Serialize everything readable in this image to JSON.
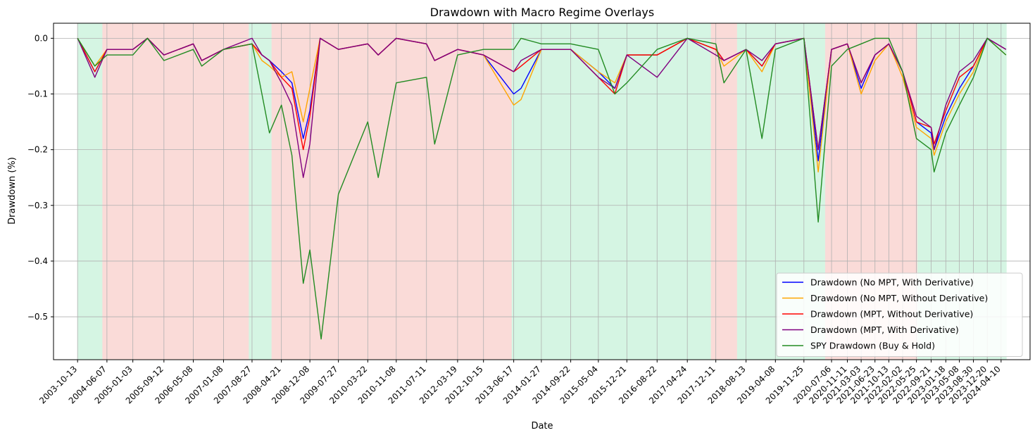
{
  "chart_data": {
    "type": "line",
    "title": "Drawdown with Macro Regime Overlays",
    "xlabel": "Date",
    "ylabel": "Drawdown (%)",
    "grid": true,
    "legend_position": "bottom-right",
    "xlim": [
      "2003-04-01",
      "2024-12-01"
    ],
    "ylim": [
      -0.577,
      0.027
    ],
    "yticks": [
      0.0,
      -0.1,
      -0.2,
      -0.3,
      -0.4,
      -0.5
    ],
    "ytick_labels": [
      "0.0",
      "−0.1",
      "−0.2",
      "−0.3",
      "−0.4",
      "−0.5"
    ],
    "xticks": [
      "2003-10-13",
      "2004-06-07",
      "2005-01-03",
      "2005-09-12",
      "2006-05-08",
      "2007-01-08",
      "2007-08-27",
      "2008-04-21",
      "2008-12-08",
      "2009-07-27",
      "2010-03-22",
      "2010-11-08",
      "2011-07-11",
      "2012-03-19",
      "2012-10-15",
      "2013-06-17",
      "2014-01-27",
      "2014-09-22",
      "2015-05-04",
      "2015-12-21",
      "2016-08-22",
      "2017-04-24",
      "2017-12-11",
      "2018-08-13",
      "2019-04-08",
      "2019-11-25",
      "2020-07-06",
      "2020-11-11",
      "2021-03-03",
      "2021-06-23",
      "2021-10-13",
      "2022-02-02",
      "2022-05-25",
      "2022-09-21",
      "2023-01-18",
      "2023-05-08",
      "2023-08-30",
      "2023-12-20",
      "2024-04-10"
    ],
    "regimes": [
      {
        "start": "2003-10-13",
        "end": "2004-05-01",
        "regime": "green"
      },
      {
        "start": "2004-05-01",
        "end": "2007-08-01",
        "regime": "red"
      },
      {
        "start": "2007-08-01",
        "end": "2008-02-01",
        "regime": "green"
      },
      {
        "start": "2008-02-01",
        "end": "2013-06-01",
        "regime": "red"
      },
      {
        "start": "2013-06-01",
        "end": "2017-11-01",
        "regime": "green"
      },
      {
        "start": "2017-11-01",
        "end": "2018-06-01",
        "regime": "red"
      },
      {
        "start": "2018-06-01",
        "end": "2020-05-15",
        "regime": "green"
      },
      {
        "start": "2020-05-15",
        "end": "2022-06-01",
        "regime": "red"
      },
      {
        "start": "2022-06-01",
        "end": "2024-05-25",
        "regime": "green"
      }
    ],
    "regime_colors": {
      "green": "#2ecc71",
      "red": "#e74c3c"
    },
    "series": [
      {
        "name": "Drawdown (No MPT, With Derivative)",
        "color": "#0000ff",
        "x": [
          "2003-10-13",
          "2004-03-01",
          "2004-06-07",
          "2005-01-03",
          "2005-05-01",
          "2005-09-12",
          "2006-05-08",
          "2006-07-15",
          "2007-01-08",
          "2007-08-27",
          "2007-11-15",
          "2008-01-15",
          "2008-04-21",
          "2008-07-15",
          "2008-10-15",
          "2008-12-08",
          "2009-03-01",
          "2009-07-27",
          "2010-03-22",
          "2010-06-15",
          "2010-11-08",
          "2011-07-11",
          "2011-09-15",
          "2012-03-19",
          "2012-10-15",
          "2013-06-17",
          "2013-08-15",
          "2014-01-27",
          "2014-09-22",
          "2015-05-04",
          "2015-09-15",
          "2015-12-21",
          "2016-08-22",
          "2017-04-24",
          "2017-12-11",
          "2018-02-15",
          "2018-08-13",
          "2018-12-20",
          "2019-04-08",
          "2019-11-25",
          "2020-03-20",
          "2020-07-06",
          "2020-11-11",
          "2021-03-03",
          "2021-06-23",
          "2021-10-13",
          "2022-02-02",
          "2022-05-25",
          "2022-09-21",
          "2022-10-15",
          "2023-01-18",
          "2023-05-08",
          "2023-08-30",
          "2023-12-20",
          "2024-05-20"
        ],
        "y": [
          0.0,
          -0.06,
          -0.02,
          -0.02,
          0.0,
          -0.03,
          -0.01,
          -0.04,
          -0.02,
          -0.01,
          -0.03,
          -0.04,
          -0.06,
          -0.08,
          -0.18,
          -0.13,
          0.0,
          -0.02,
          -0.01,
          -0.03,
          0.0,
          -0.01,
          -0.04,
          -0.02,
          -0.03,
          -0.1,
          -0.09,
          -0.02,
          -0.02,
          -0.06,
          -0.09,
          -0.03,
          -0.03,
          0.0,
          -0.02,
          -0.04,
          -0.02,
          -0.05,
          -0.01,
          0.0,
          -0.22,
          -0.02,
          -0.01,
          -0.09,
          -0.03,
          -0.01,
          -0.06,
          -0.15,
          -0.17,
          -0.2,
          -0.14,
          -0.09,
          -0.05,
          0.0,
          -0.02
        ]
      },
      {
        "name": "Drawdown (No MPT, Without Derivative)",
        "color": "#ffa500",
        "x": [
          "2003-10-13",
          "2004-03-01",
          "2004-06-07",
          "2005-01-03",
          "2005-05-01",
          "2005-09-12",
          "2006-05-08",
          "2006-07-15",
          "2007-01-08",
          "2007-08-27",
          "2007-11-15",
          "2008-01-15",
          "2008-04-21",
          "2008-07-15",
          "2008-10-15",
          "2008-12-08",
          "2009-03-01",
          "2009-07-27",
          "2010-03-22",
          "2010-06-15",
          "2010-11-08",
          "2011-07-11",
          "2011-09-15",
          "2012-03-19",
          "2012-10-15",
          "2013-06-17",
          "2013-08-15",
          "2014-01-27",
          "2014-09-22",
          "2015-05-04",
          "2015-09-15",
          "2015-12-21",
          "2016-08-22",
          "2017-04-24",
          "2017-12-11",
          "2018-02-15",
          "2018-08-13",
          "2018-12-20",
          "2019-04-08",
          "2019-11-25",
          "2020-03-20",
          "2020-07-06",
          "2020-11-11",
          "2021-03-03",
          "2021-06-23",
          "2021-10-13",
          "2022-02-02",
          "2022-05-25",
          "2022-09-21",
          "2022-10-15",
          "2023-01-18",
          "2023-05-08",
          "2023-08-30",
          "2023-12-20",
          "2024-05-20"
        ],
        "y": [
          0.0,
          -0.05,
          -0.02,
          -0.02,
          0.0,
          -0.03,
          -0.01,
          -0.04,
          -0.02,
          -0.01,
          -0.04,
          -0.05,
          -0.07,
          -0.06,
          -0.15,
          -0.09,
          0.0,
          -0.02,
          -0.01,
          -0.03,
          0.0,
          -0.01,
          -0.04,
          -0.02,
          -0.03,
          -0.12,
          -0.11,
          -0.02,
          -0.02,
          -0.06,
          -0.08,
          -0.03,
          -0.03,
          0.0,
          -0.02,
          -0.05,
          -0.02,
          -0.06,
          -0.01,
          0.0,
          -0.24,
          -0.02,
          -0.01,
          -0.1,
          -0.04,
          -0.01,
          -0.07,
          -0.16,
          -0.18,
          -0.21,
          -0.15,
          -0.1,
          -0.06,
          0.0,
          -0.03
        ]
      },
      {
        "name": "Drawdown (MPT, Without Derivative)",
        "color": "#ff0000",
        "x": [
          "2003-10-13",
          "2004-03-01",
          "2004-06-07",
          "2005-01-03",
          "2005-05-01",
          "2005-09-12",
          "2006-05-08",
          "2006-07-15",
          "2007-01-08",
          "2007-08-27",
          "2007-11-15",
          "2008-01-15",
          "2008-04-21",
          "2008-07-15",
          "2008-10-15",
          "2008-12-08",
          "2009-03-01",
          "2009-07-27",
          "2010-03-22",
          "2010-06-15",
          "2010-11-08",
          "2011-07-11",
          "2011-09-15",
          "2012-03-19",
          "2012-10-15",
          "2013-06-17",
          "2013-08-15",
          "2014-01-27",
          "2014-09-22",
          "2015-05-04",
          "2015-09-15",
          "2015-12-21",
          "2016-08-22",
          "2017-04-24",
          "2017-12-11",
          "2018-02-15",
          "2018-08-13",
          "2018-12-20",
          "2019-04-08",
          "2019-11-25",
          "2020-03-20",
          "2020-07-06",
          "2020-11-11",
          "2021-03-03",
          "2021-06-23",
          "2021-10-13",
          "2022-02-02",
          "2022-05-25",
          "2022-09-21",
          "2022-10-15",
          "2023-01-18",
          "2023-05-08",
          "2023-08-30",
          "2023-12-20",
          "2024-05-20"
        ],
        "y": [
          0.0,
          -0.06,
          -0.02,
          -0.02,
          0.0,
          -0.03,
          -0.01,
          -0.04,
          -0.02,
          -0.01,
          -0.03,
          -0.04,
          -0.07,
          -0.09,
          -0.2,
          -0.14,
          0.0,
          -0.02,
          -0.01,
          -0.03,
          0.0,
          -0.01,
          -0.04,
          -0.02,
          -0.03,
          -0.06,
          -0.05,
          -0.02,
          -0.02,
          -0.07,
          -0.1,
          -0.03,
          -0.03,
          0.0,
          -0.02,
          -0.04,
          -0.02,
          -0.05,
          -0.01,
          0.0,
          -0.2,
          -0.02,
          -0.01,
          -0.08,
          -0.03,
          -0.01,
          -0.06,
          -0.15,
          -0.16,
          -0.19,
          -0.13,
          -0.07,
          -0.05,
          0.0,
          -0.02
        ]
      },
      {
        "name": "Drawdown (MPT, With Derivative)",
        "color": "#800080",
        "x": [
          "2003-10-13",
          "2004-03-01",
          "2004-06-07",
          "2005-01-03",
          "2005-05-01",
          "2005-09-12",
          "2006-05-08",
          "2006-07-15",
          "2007-01-08",
          "2007-08-27",
          "2007-11-15",
          "2008-01-15",
          "2008-04-21",
          "2008-07-15",
          "2008-10-15",
          "2008-12-08",
          "2009-03-01",
          "2009-07-27",
          "2010-03-22",
          "2010-06-15",
          "2010-11-08",
          "2011-07-11",
          "2011-09-15",
          "2012-03-19",
          "2012-10-15",
          "2013-06-17",
          "2013-08-15",
          "2014-01-27",
          "2014-09-22",
          "2015-05-04",
          "2015-09-15",
          "2015-12-21",
          "2016-08-22",
          "2017-04-24",
          "2017-12-11",
          "2018-02-15",
          "2018-08-13",
          "2018-12-20",
          "2019-04-08",
          "2019-11-25",
          "2020-03-20",
          "2020-07-06",
          "2020-11-11",
          "2021-03-03",
          "2021-06-23",
          "2021-10-13",
          "2022-02-02",
          "2022-05-25",
          "2022-09-21",
          "2022-10-15",
          "2023-01-18",
          "2023-05-08",
          "2023-08-30",
          "2023-12-20",
          "2024-05-20"
        ],
        "y": [
          0.0,
          -0.07,
          -0.02,
          -0.02,
          0.0,
          -0.03,
          -0.01,
          -0.04,
          -0.02,
          0.0,
          -0.03,
          -0.04,
          -0.08,
          -0.12,
          -0.25,
          -0.19,
          0.0,
          -0.02,
          -0.01,
          -0.03,
          0.0,
          -0.01,
          -0.04,
          -0.02,
          -0.03,
          -0.06,
          -0.04,
          -0.02,
          -0.02,
          -0.07,
          -0.09,
          -0.03,
          -0.07,
          0.0,
          -0.03,
          -0.04,
          -0.02,
          -0.04,
          -0.01,
          0.0,
          -0.2,
          -0.02,
          -0.01,
          -0.08,
          -0.03,
          -0.01,
          -0.06,
          -0.14,
          -0.16,
          -0.2,
          -0.12,
          -0.06,
          -0.04,
          0.0,
          -0.02
        ]
      },
      {
        "name": "SPY Drawdown (Buy & Hold)",
        "color": "#228b22",
        "x": [
          "2003-10-13",
          "2004-03-01",
          "2004-06-07",
          "2005-01-03",
          "2005-05-01",
          "2005-09-12",
          "2006-05-08",
          "2006-07-15",
          "2007-01-08",
          "2007-08-27",
          "2007-11-15",
          "2008-01-15",
          "2008-04-21",
          "2008-07-15",
          "2008-10-15",
          "2008-12-08",
          "2009-03-09",
          "2009-07-27",
          "2010-03-22",
          "2010-06-15",
          "2010-11-08",
          "2011-07-11",
          "2011-09-15",
          "2012-03-19",
          "2012-10-15",
          "2013-06-17",
          "2013-08-15",
          "2014-01-27",
          "2014-09-22",
          "2015-05-04",
          "2015-09-15",
          "2015-12-21",
          "2016-08-22",
          "2017-04-24",
          "2017-12-11",
          "2018-02-15",
          "2018-08-13",
          "2018-12-20",
          "2019-04-08",
          "2019-11-25",
          "2020-03-20",
          "2020-07-06",
          "2020-11-11",
          "2021-03-03",
          "2021-06-23",
          "2021-10-13",
          "2022-02-02",
          "2022-05-25",
          "2022-09-21",
          "2022-10-15",
          "2023-01-18",
          "2023-05-08",
          "2023-08-30",
          "2023-12-20",
          "2024-05-20"
        ],
        "y": [
          0.0,
          -0.05,
          -0.03,
          -0.03,
          0.0,
          -0.04,
          -0.02,
          -0.05,
          -0.02,
          -0.01,
          -0.1,
          -0.17,
          -0.12,
          -0.21,
          -0.44,
          -0.38,
          -0.54,
          -0.28,
          -0.15,
          -0.25,
          -0.08,
          -0.07,
          -0.19,
          -0.03,
          -0.02,
          -0.02,
          0.0,
          -0.01,
          -0.01,
          -0.02,
          -0.1,
          -0.08,
          -0.02,
          0.0,
          -0.01,
          -0.08,
          -0.02,
          -0.18,
          -0.02,
          0.0,
          -0.33,
          -0.05,
          -0.02,
          -0.01,
          0.0,
          0.0,
          -0.06,
          -0.18,
          -0.2,
          -0.24,
          -0.17,
          -0.12,
          -0.07,
          0.0,
          -0.03
        ]
      }
    ]
  }
}
